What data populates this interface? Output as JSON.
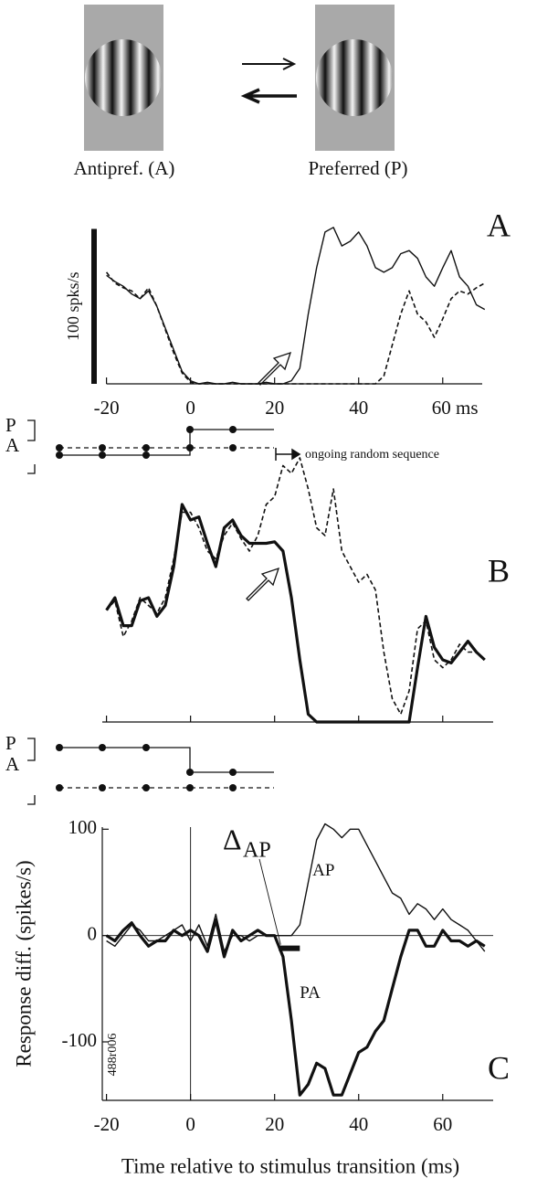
{
  "stimuli": {
    "antipref_label": "Antipref. (A)",
    "pref_label": "Preferred (P)"
  },
  "sequence_A": {
    "p_label": "P",
    "a_label": "A",
    "note": "ongoing random sequence"
  },
  "sequence_B": {
    "p_label": "P",
    "a_label": "A"
  },
  "chart_data": [
    {
      "type": "line",
      "panel_label": "A",
      "x": [
        -20,
        -18,
        -16,
        -14,
        -12,
        -10,
        -8,
        -6,
        -4,
        -2,
        0,
        2,
        4,
        6,
        8,
        10,
        12,
        14,
        16,
        18,
        20,
        22,
        24,
        26,
        28,
        30,
        32,
        34,
        36,
        38,
        40,
        42,
        44,
        46,
        48,
        50,
        52,
        54,
        56,
        58,
        60,
        62,
        64,
        66,
        68,
        70
      ],
      "xlim": [
        -21,
        72
      ],
      "xticks": [
        -20,
        0,
        20,
        40,
        {
          "value": 60,
          "label": "60 ms"
        }
      ],
      "ylim": [
        0,
        105
      ],
      "scale_bar": {
        "value": 100,
        "label": "100 spks/s"
      },
      "series": [
        {
          "color": "#111111",
          "line_style": "solid",
          "values": [
            70,
            66,
            63,
            58,
            55,
            60,
            50,
            36,
            22,
            8,
            2,
            0,
            1,
            0,
            0,
            1,
            0,
            0,
            0,
            1,
            0,
            0,
            2,
            10,
            45,
            75,
            98,
            101,
            89,
            92,
            98,
            89,
            75,
            72,
            75,
            84,
            86,
            81,
            69,
            63,
            75,
            86,
            69,
            63,
            51,
            48
          ]
        },
        {
          "color": "#111111",
          "line_style": "dashed",
          "values": [
            72,
            65,
            62,
            60,
            55,
            62,
            50,
            35,
            20,
            7,
            1,
            0,
            0,
            0,
            0,
            0,
            0,
            0,
            0,
            0,
            0,
            0,
            0,
            0,
            0,
            0,
            0,
            0,
            0,
            0,
            0,
            0,
            0,
            5,
            25,
            45,
            60,
            45,
            40,
            30,
            42,
            55,
            60,
            58,
            62,
            65
          ]
        }
      ]
    },
    {
      "type": "line",
      "panel_label": "B",
      "x": [
        -20,
        -18,
        -16,
        -14,
        -12,
        -10,
        -8,
        -6,
        -4,
        -2,
        0,
        2,
        4,
        6,
        8,
        10,
        12,
        14,
        16,
        18,
        20,
        22,
        24,
        26,
        28,
        30,
        32,
        34,
        36,
        38,
        40,
        42,
        44,
        46,
        48,
        50,
        52,
        54,
        56,
        58,
        60,
        62,
        64,
        66,
        68,
        70
      ],
      "xlim": [
        -21,
        72
      ],
      "xticks": [
        -20,
        0,
        20,
        40,
        60
      ],
      "tick_labels": false,
      "ylim": [
        0,
        180
      ],
      "series": [
        {
          "color": "#111111",
          "line_style": "thick",
          "values": [
            72,
            80,
            62,
            62,
            78,
            80,
            68,
            75,
            100,
            140,
            130,
            132,
            115,
            100,
            125,
            130,
            120,
            115,
            115,
            115,
            116,
            110,
            80,
            40,
            5,
            0,
            0,
            0,
            0,
            0,
            0,
            0,
            0,
            0,
            0,
            0,
            0,
            35,
            68,
            48,
            40,
            38,
            45,
            52,
            45,
            40
          ]
        },
        {
          "color": "#111111",
          "line_style": "dashed",
          "values": [
            72,
            78,
            55,
            65,
            80,
            75,
            70,
            80,
            105,
            135,
            135,
            125,
            110,
            105,
            120,
            128,
            118,
            110,
            120,
            140,
            145,
            165,
            160,
            170,
            150,
            125,
            120,
            150,
            110,
            100,
            90,
            95,
            85,
            45,
            15,
            5,
            20,
            60,
            65,
            40,
            35,
            40,
            50,
            45,
            45,
            40
          ]
        }
      ]
    },
    {
      "type": "line",
      "panel_label": "C",
      "id_label": "488r006",
      "x_label": "Time relative to stimulus transition (ms)",
      "y_label": "Response diff. (spikes/s)",
      "x": [
        -20,
        -18,
        -16,
        -14,
        -12,
        -10,
        -8,
        -6,
        -4,
        -2,
        0,
        2,
        4,
        6,
        8,
        10,
        12,
        14,
        16,
        18,
        20,
        22,
        24,
        26,
        28,
        30,
        32,
        34,
        36,
        38,
        40,
        42,
        44,
        46,
        48,
        50,
        52,
        54,
        56,
        58,
        60,
        62,
        64,
        66,
        68,
        70
      ],
      "xlim": [
        -21,
        72
      ],
      "xticks": [
        -20,
        0,
        20,
        40,
        60
      ],
      "ylim": [
        -155,
        102
      ],
      "yticks": [
        -100,
        0,
        100
      ],
      "reference_lines": true,
      "annotation": {
        "symbol": "Δ",
        "subscript": "AP",
        "interval": [
          21,
          26
        ]
      },
      "series": [
        {
          "name": "AP",
          "color": "#111111",
          "line_style": "solid",
          "values": [
            -5,
            -10,
            0,
            10,
            5,
            -5,
            -5,
            0,
            5,
            10,
            -5,
            10,
            -10,
            20,
            -15,
            0,
            0,
            -5,
            0,
            0,
            0,
            0,
            0,
            10,
            50,
            90,
            105,
            100,
            92,
            100,
            100,
            85,
            70,
            55,
            40,
            35,
            20,
            30,
            25,
            15,
            25,
            15,
            10,
            5,
            -5,
            -15
          ]
        },
        {
          "name": "PA",
          "color": "#111111",
          "line_style": "thick",
          "values": [
            0,
            -5,
            5,
            12,
            0,
            -10,
            -5,
            -5,
            5,
            0,
            5,
            0,
            -15,
            15,
            -20,
            5,
            -5,
            0,
            5,
            0,
            0,
            -20,
            -80,
            -150,
            -140,
            -120,
            -125,
            -150,
            -150,
            -130,
            -110,
            -105,
            -90,
            -80,
            -50,
            -20,
            5,
            5,
            -10,
            -10,
            5,
            -5,
            -5,
            -10,
            -5,
            -10
          ]
        }
      ]
    }
  ]
}
